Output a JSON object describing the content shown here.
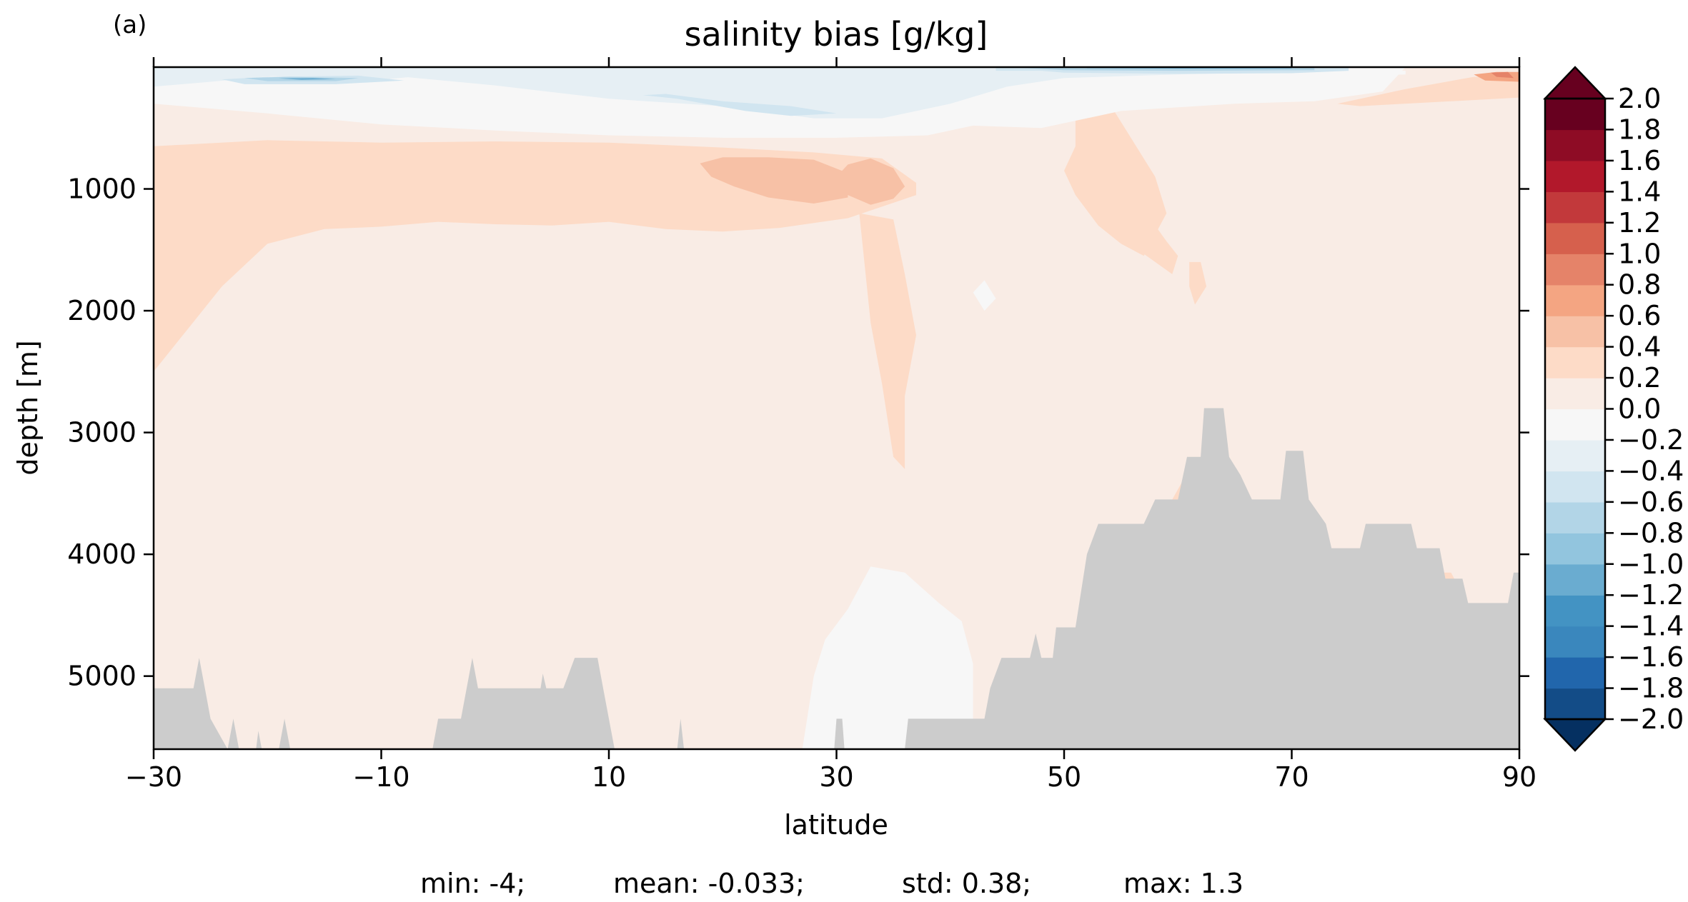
{
  "panel_label": "(a)",
  "stats": {
    "min": "min: -4;",
    "mean": "mean: -0.033;",
    "std": "std: 0.38;",
    "max": "max: 1.3"
  },
  "colors": {
    "land": "#cccccc",
    "palette": [
      "#053061",
      "#134c87",
      "#2166ac",
      "#3a87bd",
      "#4393c3",
      "#6aacd0",
      "#92c5de",
      "#b2d5e7",
      "#d1e5f0",
      "#e6eff4",
      "#f7f7f7",
      "#f9ece5",
      "#fddbc7",
      "#f7c1a6",
      "#f4a582",
      "#e58369",
      "#d6604d",
      "#c2393b",
      "#b2182b",
      "#8e0c25",
      "#67001f"
    ]
  },
  "chart_data": {
    "type": "heatmap",
    "title": "salinity bias [g/kg]",
    "xlabel": "latitude",
    "ylabel": "depth [m]",
    "xlim": [
      -30,
      90
    ],
    "ylim": [
      5600,
      0
    ],
    "y_inverted": true,
    "xticks": [
      -30,
      -10,
      10,
      30,
      50,
      70,
      90
    ],
    "xtick_labels": [
      "−30",
      "−10",
      "10",
      "30",
      "50",
      "70",
      "90"
    ],
    "yticks": [
      1000,
      2000,
      3000,
      4000,
      5000
    ],
    "ytick_labels": [
      "1000",
      "2000",
      "3000",
      "4000",
      "5000"
    ],
    "colorbar": {
      "levels": [
        -2.0,
        -1.8,
        -1.6,
        -1.4,
        -1.2,
        -1.0,
        -0.8,
        -0.6,
        -0.4,
        -0.2,
        0.0,
        0.2,
        0.4,
        0.6,
        0.8,
        1.0,
        1.2,
        1.4,
        1.6,
        1.8,
        2.0
      ],
      "tick_labels": [
        "−2.0",
        "−1.8",
        "−1.6",
        "−1.4",
        "−1.2",
        "−1.0",
        "−0.8",
        "−0.6",
        "−0.4",
        "−0.2",
        "0.0",
        "0.2",
        "0.4",
        "0.6",
        "0.8",
        "1.0",
        "1.2",
        "1.4",
        "1.6",
        "1.8",
        "2.0"
      ],
      "extend": "both"
    },
    "background_value": 0.1,
    "regions": [
      {
        "value": 0.3,
        "poly": [
          [
            -30,
            2500
          ],
          [
            -27,
            2150
          ],
          [
            -24,
            1800
          ],
          [
            -20,
            1450
          ],
          [
            -15,
            1330
          ],
          [
            -10,
            1310
          ],
          [
            -5,
            1270
          ],
          [
            0,
            1290
          ],
          [
            5,
            1300
          ],
          [
            10,
            1270
          ],
          [
            15,
            1330
          ],
          [
            20,
            1350
          ],
          [
            25,
            1320
          ],
          [
            31,
            1240
          ],
          [
            37,
            1050
          ],
          [
            37,
            950
          ],
          [
            34,
            750
          ],
          [
            28,
            700
          ],
          [
            20,
            660
          ],
          [
            10,
            620
          ],
          [
            0,
            610
          ],
          [
            -10,
            620
          ],
          [
            -20,
            600
          ],
          [
            -30,
            650
          ]
        ]
      },
      {
        "value": 0.3,
        "poly": [
          [
            32,
            1200
          ],
          [
            33,
            2100
          ],
          [
            34,
            2600
          ],
          [
            35,
            3200
          ],
          [
            36,
            3300
          ],
          [
            36,
            2700
          ],
          [
            37,
            2200
          ],
          [
            36,
            1700
          ],
          [
            35,
            1250
          ]
        ]
      },
      {
        "value": 0.3,
        "poly": [
          [
            51,
            650
          ],
          [
            50,
            850
          ],
          [
            51,
            1050
          ],
          [
            53,
            1300
          ],
          [
            55,
            1450
          ],
          [
            57,
            1550
          ],
          [
            59,
            1200
          ],
          [
            58,
            900
          ],
          [
            56,
            600
          ],
          [
            54,
            300
          ],
          [
            52,
            220
          ],
          [
            51,
            400
          ]
        ]
      },
      {
        "value": 0.3,
        "poly": [
          [
            54.5,
            1300
          ],
          [
            58,
            1300
          ],
          [
            59,
            1430
          ],
          [
            60,
            1550
          ],
          [
            59.5,
            1700
          ],
          [
            56.5,
            1500
          ]
        ]
      },
      {
        "value": 0.3,
        "poly": [
          [
            61,
            1600
          ],
          [
            62,
            1600
          ],
          [
            62.5,
            1800
          ],
          [
            61.5,
            1950
          ],
          [
            61,
            1800
          ]
        ]
      },
      {
        "value": 0.3,
        "poly": [
          [
            74,
            300
          ],
          [
            80,
            180
          ],
          [
            86,
            80
          ],
          [
            90,
            80
          ],
          [
            90,
            250
          ],
          [
            84,
            280
          ],
          [
            76,
            320
          ]
        ]
      },
      {
        "value": 0.3,
        "poly": [
          [
            81,
            4150
          ],
          [
            84,
            4150
          ],
          [
            86,
            4500
          ],
          [
            85,
            4600
          ],
          [
            82,
            4400
          ]
        ]
      },
      {
        "value": 0.3,
        "poly": [
          [
            59.5,
            3550
          ],
          [
            61,
            3300
          ],
          [
            62,
            3500
          ],
          [
            61,
            3600
          ]
        ]
      },
      {
        "value": 0.5,
        "poly": [
          [
            18,
            790
          ],
          [
            19,
            900
          ],
          [
            21,
            980
          ],
          [
            24,
            1070
          ],
          [
            28,
            1120
          ],
          [
            31,
            1070
          ],
          [
            31,
            870
          ],
          [
            28,
            760
          ],
          [
            24,
            740
          ],
          [
            20,
            740
          ]
        ]
      },
      {
        "value": 0.5,
        "poly": [
          [
            30,
            900
          ],
          [
            31,
            1050
          ],
          [
            33,
            1130
          ],
          [
            35,
            1080
          ],
          [
            36,
            980
          ],
          [
            35,
            830
          ],
          [
            33,
            750
          ],
          [
            31,
            800
          ]
        ]
      },
      {
        "value": 0.7,
        "poly": [
          [
            86,
            60
          ],
          [
            88,
            40
          ],
          [
            90,
            40
          ],
          [
            90,
            120
          ],
          [
            87,
            110
          ]
        ]
      },
      {
        "value": 0.9,
        "poly": [
          [
            87.5,
            45
          ],
          [
            89,
            40
          ],
          [
            89.5,
            90
          ],
          [
            88,
            80
          ]
        ]
      },
      {
        "value": -0.1,
        "poly": [
          [
            -30,
            180
          ],
          [
            -22,
            120
          ],
          [
            -10,
            180
          ],
          [
            0,
            160
          ],
          [
            10,
            90
          ],
          [
            20,
            70
          ],
          [
            30,
            60
          ],
          [
            40,
            80
          ],
          [
            48,
            80
          ],
          [
            55,
            90
          ],
          [
            62,
            70
          ],
          [
            72,
            80
          ],
          [
            80,
            60
          ],
          [
            80,
            30
          ],
          [
            -30,
            30
          ]
        ]
      },
      {
        "value": -0.1,
        "poly": [
          [
            -30,
            300
          ],
          [
            -20,
            380
          ],
          [
            -10,
            470
          ],
          [
            0,
            520
          ],
          [
            10,
            560
          ],
          [
            20,
            580
          ],
          [
            30,
            580
          ],
          [
            38,
            560
          ],
          [
            42,
            480
          ],
          [
            48,
            500
          ],
          [
            55,
            360
          ],
          [
            65,
            300
          ],
          [
            72,
            280
          ],
          [
            78,
            200
          ],
          [
            80,
            0
          ],
          [
            -30,
            0
          ]
        ]
      },
      {
        "value": -0.1,
        "poly": [
          [
            27,
            5600
          ],
          [
            28,
            5000
          ],
          [
            29,
            4700
          ],
          [
            31,
            4450
          ],
          [
            33,
            4100
          ],
          [
            36,
            4150
          ],
          [
            39,
            4400
          ],
          [
            41,
            4550
          ],
          [
            42,
            4900
          ],
          [
            42,
            5500
          ],
          [
            37,
            5600
          ]
        ]
      },
      {
        "value": -0.1,
        "poly": [
          [
            42,
            1850
          ],
          [
            43,
            1750
          ],
          [
            44,
            1900
          ],
          [
            43,
            2000
          ]
        ]
      },
      {
        "value": -0.3,
        "poly": [
          [
            -30,
            160
          ],
          [
            -25,
            120
          ],
          [
            -18,
            60
          ],
          [
            -8,
            80
          ],
          [
            0,
            150
          ],
          [
            10,
            260
          ],
          [
            20,
            320
          ],
          [
            28,
            420
          ],
          [
            34,
            420
          ],
          [
            40,
            300
          ],
          [
            45,
            160
          ],
          [
            50,
            90
          ],
          [
            60,
            60
          ],
          [
            70,
            40
          ],
          [
            70,
            0
          ],
          [
            -30,
            0
          ]
        ]
      },
      {
        "value": -0.3,
        "poly": [
          [
            -30,
            60
          ],
          [
            -20,
            70
          ],
          [
            -12,
            120
          ],
          [
            -5,
            60
          ],
          [
            -30,
            20
          ]
        ]
      },
      {
        "value": -0.5,
        "poly": [
          [
            -24,
            100
          ],
          [
            -20,
            80
          ],
          [
            -12,
            70
          ],
          [
            -8,
            110
          ],
          [
            -14,
            140
          ],
          [
            -22,
            140
          ]
        ]
      },
      {
        "value": -0.5,
        "poly": [
          [
            13,
            230
          ],
          [
            16,
            260
          ],
          [
            22,
            360
          ],
          [
            26,
            400
          ],
          [
            30,
            380
          ],
          [
            26,
            320
          ],
          [
            20,
            280
          ],
          [
            15,
            220
          ]
        ]
      },
      {
        "value": -0.5,
        "poly": [
          [
            44,
            30
          ],
          [
            48,
            30
          ],
          [
            50,
            45
          ],
          [
            60,
            55
          ],
          [
            70,
            50
          ],
          [
            75,
            30
          ],
          [
            75,
            0
          ],
          [
            44,
            0
          ]
        ]
      },
      {
        "value": -0.7,
        "poly": [
          [
            -22,
            90
          ],
          [
            -18,
            80
          ],
          [
            -12,
            90
          ],
          [
            -14,
            115
          ],
          [
            -20,
            115
          ]
        ]
      },
      {
        "value": -0.7,
        "poly": [
          [
            45,
            0
          ],
          [
            60,
            0
          ],
          [
            72,
            0
          ],
          [
            72,
            25
          ],
          [
            60,
            30
          ],
          [
            50,
            25
          ]
        ]
      },
      {
        "value": -1.1,
        "poly": [
          [
            -19,
            92
          ],
          [
            -16,
            90
          ],
          [
            -14,
            98
          ],
          [
            -17,
            104
          ]
        ]
      },
      {
        "value": -1.1,
        "poly": [
          [
            52,
            0
          ],
          [
            70,
            0
          ],
          [
            70,
            10
          ],
          [
            60,
            12
          ],
          [
            52,
            8
          ]
        ]
      }
    ],
    "bathymetry": [
      {
        "lat": -30,
        "depth": 5100
      },
      {
        "lat": -26.5,
        "depth": 5100
      },
      {
        "lat": -26,
        "depth": 4850
      },
      {
        "lat": -25.5,
        "depth": 5100
      },
      {
        "lat": -25,
        "depth": 5350
      },
      {
        "lat": -23.5,
        "depth": 5600
      },
      {
        "lat": -23,
        "depth": 5350
      },
      {
        "lat": -22.5,
        "depth": 5600
      },
      {
        "lat": -21,
        "depth": 5600
      },
      {
        "lat": -20.8,
        "depth": 5450
      },
      {
        "lat": -20.5,
        "depth": 5600
      },
      {
        "lat": -19,
        "depth": 5600
      },
      {
        "lat": -18.5,
        "depth": 5350
      },
      {
        "lat": -18,
        "depth": 5600
      },
      {
        "lat": -5.5,
        "depth": 5600
      },
      {
        "lat": -5,
        "depth": 5350
      },
      {
        "lat": -3,
        "depth": 5350
      },
      {
        "lat": -2,
        "depth": 4850
      },
      {
        "lat": -1.5,
        "depth": 5100
      },
      {
        "lat": 4,
        "depth": 5100
      },
      {
        "lat": 4.2,
        "depth": 4980
      },
      {
        "lat": 4.5,
        "depth": 5100
      },
      {
        "lat": 6,
        "depth": 5100
      },
      {
        "lat": 7,
        "depth": 4850
      },
      {
        "lat": 9,
        "depth": 4850
      },
      {
        "lat": 9.5,
        "depth": 5100
      },
      {
        "lat": 10,
        "depth": 5350
      },
      {
        "lat": 10.5,
        "depth": 5600
      },
      {
        "lat": 16,
        "depth": 5600
      },
      {
        "lat": 16.3,
        "depth": 5350
      },
      {
        "lat": 16.6,
        "depth": 5600
      },
      {
        "lat": 29.8,
        "depth": 5600
      },
      {
        "lat": 30,
        "depth": 5350
      },
      {
        "lat": 30.5,
        "depth": 5350
      },
      {
        "lat": 30.7,
        "depth": 5600
      },
      {
        "lat": 36,
        "depth": 5600
      },
      {
        "lat": 36.3,
        "depth": 5350
      },
      {
        "lat": 43,
        "depth": 5350
      },
      {
        "lat": 43.5,
        "depth": 5100
      },
      {
        "lat": 44.5,
        "depth": 4850
      },
      {
        "lat": 47,
        "depth": 4850
      },
      {
        "lat": 47.5,
        "depth": 4650
      },
      {
        "lat": 48,
        "depth": 4850
      },
      {
        "lat": 49,
        "depth": 4850
      },
      {
        "lat": 49.3,
        "depth": 4600
      },
      {
        "lat": 51,
        "depth": 4600
      },
      {
        "lat": 52,
        "depth": 4000
      },
      {
        "lat": 53,
        "depth": 3750
      },
      {
        "lat": 57,
        "depth": 3750
      },
      {
        "lat": 58,
        "depth": 3550
      },
      {
        "lat": 60,
        "depth": 3550
      },
      {
        "lat": 60.8,
        "depth": 3200
      },
      {
        "lat": 62,
        "depth": 3200
      },
      {
        "lat": 62.3,
        "depth": 2800
      },
      {
        "lat": 64,
        "depth": 2800
      },
      {
        "lat": 64.5,
        "depth": 3200
      },
      {
        "lat": 65.5,
        "depth": 3350
      },
      {
        "lat": 66.5,
        "depth": 3550
      },
      {
        "lat": 69,
        "depth": 3550
      },
      {
        "lat": 69.5,
        "depth": 3150
      },
      {
        "lat": 71,
        "depth": 3150
      },
      {
        "lat": 71.5,
        "depth": 3550
      },
      {
        "lat": 73,
        "depth": 3750
      },
      {
        "lat": 73.5,
        "depth": 3950
      },
      {
        "lat": 76,
        "depth": 3950
      },
      {
        "lat": 76.5,
        "depth": 3750
      },
      {
        "lat": 80.5,
        "depth": 3750
      },
      {
        "lat": 81,
        "depth": 3950
      },
      {
        "lat": 83,
        "depth": 3950
      },
      {
        "lat": 83.5,
        "depth": 4200
      },
      {
        "lat": 85,
        "depth": 4200
      },
      {
        "lat": 85.5,
        "depth": 4400
      },
      {
        "lat": 89,
        "depth": 4400
      },
      {
        "lat": 89.5,
        "depth": 4150
      },
      {
        "lat": 90,
        "depth": 4150
      }
    ]
  }
}
